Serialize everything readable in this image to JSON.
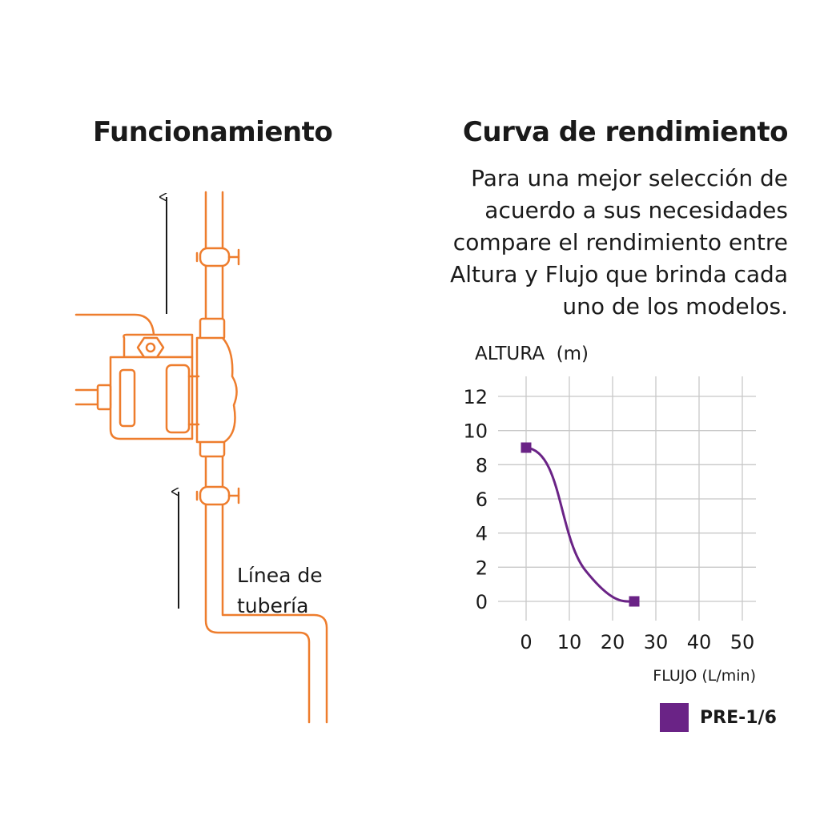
{
  "left": {
    "title": "Funcionamiento",
    "pipe_label_line1": "Línea de",
    "pipe_label_line2": "tubería"
  },
  "right": {
    "title": "Curva de rendimiento",
    "description_lines": [
      "Para una mejor selección de",
      "acuerdo a sus necesidades",
      "compare el rendimiento entre",
      "Altura y Flujo que brinda cada",
      "uno de los modelos."
    ]
  },
  "colors": {
    "diagram_orange": "#ee7d2d",
    "series_purple": "#6a2386",
    "grid": "#c8c8c8",
    "text": "#1a1a1a"
  },
  "icons": [
    "flow-up-arrow-icon",
    "valve-icon",
    "pump-icon"
  ],
  "chart_data": {
    "type": "line",
    "xlabel": "FLUJO (L/min)",
    "ylabel": "ALTURA  (m)",
    "xlim": [
      0,
      50
    ],
    "ylim": [
      0,
      12
    ],
    "xticks": [
      0,
      10,
      20,
      30,
      40,
      50
    ],
    "yticks": [
      0,
      2,
      4,
      6,
      8,
      10,
      12
    ],
    "grid": true,
    "legend_position": "bottom-right",
    "series": [
      {
        "name": "PRE-1/6",
        "color": "#6a2386",
        "x": [
          0,
          25
        ],
        "y": [
          9,
          0
        ]
      }
    ]
  }
}
